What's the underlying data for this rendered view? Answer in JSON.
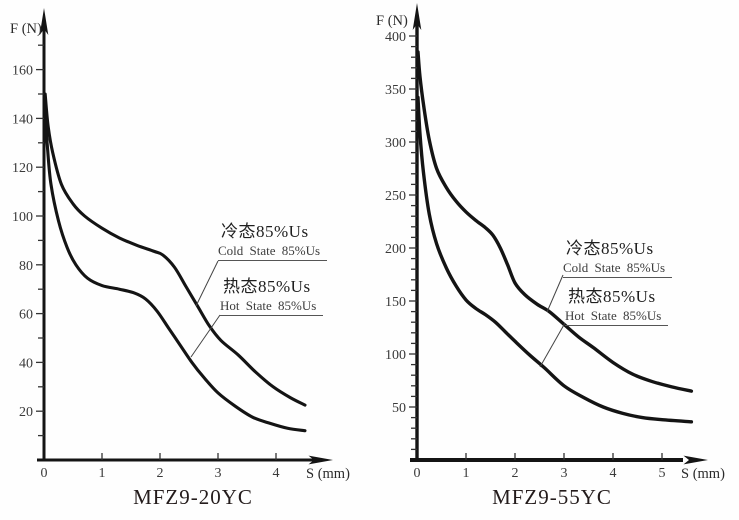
{
  "figure": {
    "background": "#fefefe",
    "line_color": "#141414",
    "text_color": "#3a3a3a"
  },
  "chart_data": [
    {
      "type": "line",
      "title": "MFZ9-20YC",
      "ylabel": "F (N)",
      "xlabel": "S (mm)",
      "xlim": [
        0,
        4.9
      ],
      "ylim": [
        0,
        175
      ],
      "grid": false,
      "x_ticks": [
        0,
        1,
        2,
        3,
        4
      ],
      "y_ticks_labeled": [
        20,
        40,
        60,
        80,
        100,
        120,
        140,
        160
      ],
      "y_minor_tick_step": 10,
      "y_minor_tick_max": 170,
      "series": [
        {
          "name": "cold-state",
          "label_cn": "冷态85%Us",
          "label_en": "Cold State 85%Us",
          "points": [
            [
              0.02,
              150
            ],
            [
              0.07,
              137
            ],
            [
              0.15,
              126
            ],
            [
              0.3,
              113
            ],
            [
              0.5,
              105
            ],
            [
              0.7,
              100
            ],
            [
              1.0,
              95
            ],
            [
              1.3,
              91
            ],
            [
              1.6,
              88
            ],
            [
              1.9,
              85.5
            ],
            [
              2.05,
              84
            ],
            [
              2.25,
              79
            ],
            [
              2.45,
              71
            ],
            [
              2.65,
              63
            ],
            [
              2.85,
              55
            ],
            [
              3.05,
              49
            ],
            [
              3.35,
              43
            ],
            [
              3.65,
              36
            ],
            [
              3.95,
              30
            ],
            [
              4.25,
              25.5
            ],
            [
              4.5,
              22.5
            ]
          ]
        },
        {
          "name": "hot-state",
          "label_cn": "热态85%Us",
          "label_en": "Hot State 85%Us",
          "points": [
            [
              0.02,
              142
            ],
            [
              0.06,
              128
            ],
            [
              0.12,
              113
            ],
            [
              0.25,
              98
            ],
            [
              0.4,
              87
            ],
            [
              0.55,
              80
            ],
            [
              0.75,
              74.5
            ],
            [
              1.0,
              71.5
            ],
            [
              1.3,
              70
            ],
            [
              1.55,
              68.5
            ],
            [
              1.75,
              66
            ],
            [
              1.95,
              61
            ],
            [
              2.15,
              54
            ],
            [
              2.35,
              47
            ],
            [
              2.55,
              40
            ],
            [
              2.75,
              34
            ],
            [
              3.0,
              27.5
            ],
            [
              3.3,
              22
            ],
            [
              3.6,
              17.5
            ],
            [
              3.9,
              15
            ],
            [
              4.2,
              13
            ],
            [
              4.5,
              12
            ]
          ]
        }
      ]
    },
    {
      "type": "line",
      "title": "MFZ9-55YC",
      "ylabel": "F (N)",
      "xlabel": "S (mm)",
      "xlim": [
        0,
        5.9
      ],
      "ylim": [
        0,
        430
      ],
      "grid": false,
      "x_ticks": [
        0,
        1,
        2,
        3,
        4,
        5
      ],
      "y_ticks_labeled": [
        50,
        100,
        150,
        200,
        250,
        300,
        350,
        400
      ],
      "y_minor_tick_step": 10,
      "y_minor_tick_max": 400,
      "series": [
        {
          "name": "cold-state",
          "label_cn": "冷态85%Us",
          "label_en": "Cold State 85%Us",
          "points": [
            [
              0.02,
              385
            ],
            [
              0.06,
              362
            ],
            [
              0.14,
              333
            ],
            [
              0.25,
              302
            ],
            [
              0.4,
              275
            ],
            [
              0.6,
              257
            ],
            [
              0.8,
              244
            ],
            [
              1.0,
              234
            ],
            [
              1.2,
              226
            ],
            [
              1.4,
              219
            ],
            [
              1.55,
              212
            ],
            [
              1.7,
              200
            ],
            [
              1.85,
              184
            ],
            [
              2.0,
              167
            ],
            [
              2.2,
              156
            ],
            [
              2.45,
              147
            ],
            [
              2.7,
              140
            ],
            [
              3.0,
              128
            ],
            [
              3.3,
              116
            ],
            [
              3.6,
              106
            ],
            [
              4.0,
              92
            ],
            [
              4.4,
              81
            ],
            [
              4.8,
              74
            ],
            [
              5.2,
              69
            ],
            [
              5.6,
              65
            ]
          ]
        },
        {
          "name": "hot-state",
          "label_cn": "热态85%Us",
          "label_en": "Hot State 85%Us",
          "points": [
            [
              0.02,
              342
            ],
            [
              0.06,
              308
            ],
            [
              0.13,
              272
            ],
            [
              0.25,
              232
            ],
            [
              0.4,
              204
            ],
            [
              0.6,
              181
            ],
            [
              0.8,
              164
            ],
            [
              1.0,
              151
            ],
            [
              1.2,
              143
            ],
            [
              1.4,
              137
            ],
            [
              1.6,
              130
            ],
            [
              1.8,
              121
            ],
            [
              2.0,
              112
            ],
            [
              2.3,
              99
            ],
            [
              2.6,
              87
            ],
            [
              3.0,
              70
            ],
            [
              3.4,
              59
            ],
            [
              3.8,
              50
            ],
            [
              4.2,
              44
            ],
            [
              4.6,
              40
            ],
            [
              5.0,
              38
            ],
            [
              5.6,
              36
            ]
          ]
        }
      ]
    }
  ]
}
